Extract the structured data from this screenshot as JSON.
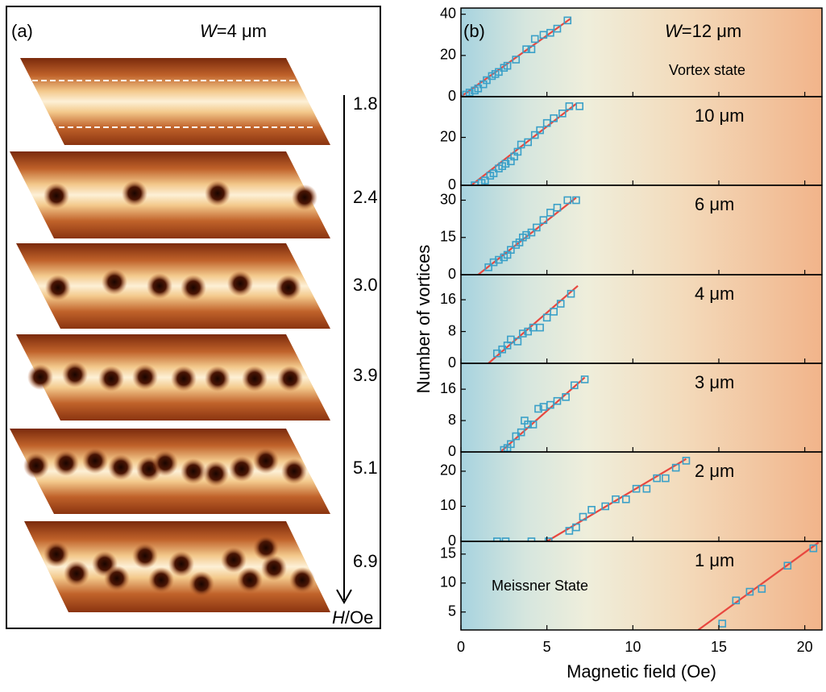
{
  "panel_a": {
    "label": "(a)",
    "width_var": "W",
    "width_label": "=4 μm",
    "fields": [
      "1.8",
      "2.4",
      "3.0",
      "3.9",
      "5.1",
      "6.9"
    ],
    "axis_var": "H",
    "axis_unit": "/Oe"
  },
  "panel_b": {
    "label": "(b)",
    "ylabel": "Number of vortices",
    "xlabel": "Magnetic field (Oe)"
  },
  "chart_data": [
    {
      "type": "scatter",
      "label_var": "W",
      "label": "=12 μm",
      "note": "Vortex state",
      "x": [
        0.3,
        0.5,
        0.8,
        1.0,
        1.3,
        1.5,
        1.8,
        2.0,
        2.2,
        2.5,
        2.7,
        3.2,
        3.8,
        4.1,
        4.3,
        4.8,
        5.2,
        5.6,
        6.2
      ],
      "values": [
        1,
        2,
        3,
        4,
        6,
        8,
        10,
        11,
        12,
        14,
        15,
        18,
        23,
        23,
        28,
        30,
        31,
        33,
        37
      ],
      "fit_x": [
        0,
        6.4
      ],
      "fit_values": [
        0,
        38
      ],
      "xlim": [
        0,
        21
      ],
      "xticks": [
        0,
        5,
        10,
        15,
        20
      ],
      "ylim": [
        0,
        43
      ],
      "yticks": [
        0,
        20,
        40
      ],
      "color": "#3aa0c8",
      "fit_color": "#e8473f"
    },
    {
      "type": "scatter",
      "label": "10 μm",
      "x": [
        0.8,
        1.2,
        1.4,
        1.7,
        1.9,
        2.2,
        2.4,
        2.6,
        2.9,
        3.1,
        3.3,
        3.5,
        3.9,
        4.3,
        4.6,
        5.0,
        5.4,
        5.9,
        6.3,
        6.9
      ],
      "values": [
        0,
        1,
        2,
        4,
        5,
        7,
        8,
        9,
        10,
        12,
        14,
        17,
        18,
        21,
        23,
        26,
        28,
        30,
        33,
        33
      ],
      "fit_x": [
        0.6,
        6.7
      ],
      "fit_values": [
        0,
        34
      ],
      "xlim": [
        0,
        21
      ],
      "xticks": [
        0,
        5,
        10,
        15,
        20
      ],
      "ylim": [
        0,
        37
      ],
      "yticks": [
        0,
        20
      ],
      "color": "#3aa0c8",
      "fit_color": "#e8473f"
    },
    {
      "type": "scatter",
      "label": "6 μm",
      "x": [
        1.6,
        1.9,
        2.2,
        2.5,
        2.7,
        2.9,
        3.2,
        3.4,
        3.6,
        3.8,
        4.1,
        4.4,
        4.8,
        5.2,
        5.6,
        6.2,
        6.7
      ],
      "values": [
        3,
        5,
        6,
        7,
        8,
        10,
        12,
        13,
        15,
        16,
        17,
        19,
        22,
        25,
        27,
        30,
        30
      ],
      "fit_x": [
        1.0,
        6.7
      ],
      "fit_values": [
        0,
        31
      ],
      "xlim": [
        0,
        21
      ],
      "xticks": [
        0,
        5,
        10,
        15,
        20
      ],
      "ylim": [
        0,
        36
      ],
      "yticks": [
        0,
        15,
        30
      ],
      "color": "#3aa0c8",
      "fit_color": "#e8473f"
    },
    {
      "type": "scatter",
      "label": "4 μm",
      "x": [
        2.1,
        2.4,
        2.7,
        2.9,
        3.3,
        3.6,
        3.9,
        4.2,
        4.6,
        5.0,
        5.4,
        5.8,
        6.4
      ],
      "values": [
        2.5,
        3.5,
        4.5,
        6,
        5.5,
        7.5,
        8,
        9,
        9,
        11.5,
        13,
        15,
        17.5
      ],
      "fit_x": [
        1.6,
        6.8
      ],
      "fit_values": [
        0,
        19.5
      ],
      "xlim": [
        0,
        21
      ],
      "xticks": [
        0,
        5,
        10,
        15,
        20
      ],
      "ylim": [
        0,
        22.3
      ],
      "yticks": [
        0,
        8,
        16
      ],
      "color": "#3aa0c8",
      "fit_color": "#e8473f"
    },
    {
      "type": "scatter",
      "label": "3 μm",
      "x": [
        2.5,
        2.7,
        2.9,
        3.2,
        3.5,
        3.7,
        3.9,
        4.2,
        4.5,
        4.8,
        5.2,
        5.6,
        6.1,
        6.6,
        7.2
      ],
      "values": [
        0.5,
        1,
        2,
        4,
        5,
        8,
        7,
        7,
        11,
        11.5,
        12,
        13,
        14,
        17,
        18.5
      ],
      "fit_x": [
        2.3,
        7.2
      ],
      "fit_values": [
        0,
        19
      ],
      "xlim": [
        0,
        21
      ],
      "xticks": [
        0,
        5,
        10,
        15,
        20
      ],
      "ylim": [
        0,
        22.6
      ],
      "yticks": [
        0,
        8,
        16
      ],
      "color": "#3aa0c8",
      "fit_color": "#e8473f"
    },
    {
      "type": "scatter",
      "label": "2 μm",
      "x": [
        2.1,
        2.6,
        4.1,
        5.1,
        6.3,
        6.7,
        7.1,
        7.6,
        8.4,
        9.0,
        9.6,
        10.2,
        10.8,
        11.4,
        11.9,
        12.5,
        13.1
      ],
      "values": [
        0,
        0,
        0,
        0,
        3,
        4,
        7,
        9,
        10,
        12,
        12,
        15,
        15,
        18,
        18,
        21,
        23
      ],
      "fit_x": [
        5.0,
        13.1
      ],
      "fit_values": [
        0,
        23.5
      ],
      "xlim": [
        0,
        21
      ],
      "xticks": [
        0,
        5,
        10,
        15,
        20
      ],
      "ylim": [
        0,
        25.5
      ],
      "yticks": [
        0,
        10,
        20
      ],
      "color": "#3aa0c8",
      "fit_color": "#e8473f"
    },
    {
      "type": "scatter",
      "label": "1 μm",
      "note": "Meissner State",
      "x": [
        15.2,
        16.0,
        16.8,
        17.5,
        19.0,
        20.5
      ],
      "values": [
        3,
        7,
        8.5,
        9,
        13,
        16
      ],
      "fit_x": [
        13.8,
        20.8
      ],
      "fit_values": [
        1.9,
        17
      ],
      "xlim": [
        0,
        21
      ],
      "xticks": [
        0,
        5,
        10,
        15,
        20
      ],
      "ylim": [
        1.9,
        17.2
      ],
      "yticks": [
        5,
        10,
        15
      ],
      "color": "#3aa0c8",
      "fit_color": "#e8473f"
    }
  ]
}
